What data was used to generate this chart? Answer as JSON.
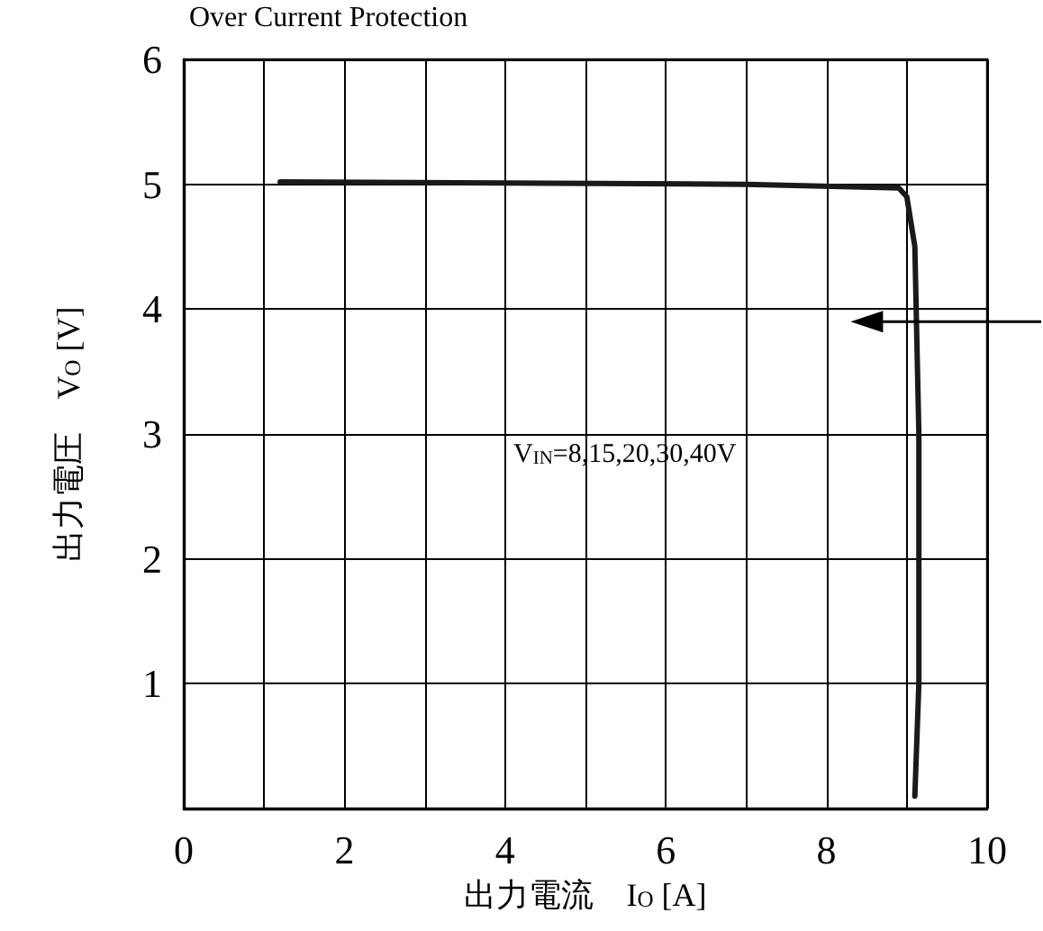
{
  "chart_data": {
    "type": "line",
    "title": "Over Current Protection",
    "xlabel": "出力電流　I$_{O}$ [A]",
    "ylabel": "出力電圧　V$_{O}$ [V]",
    "annotations": [
      "V$_{IN}$=8,15,20,30,40V"
    ],
    "series": [
      {
        "color": "#1a1a1a",
        "x": [
          1.2,
          4,
          7,
          8.9,
          9.0,
          9.1,
          9.15,
          9.15,
          9.1
        ],
        "values": [
          5.02,
          5.01,
          5.0,
          4.97,
          4.9,
          4.5,
          3,
          1,
          0.1
        ]
      }
    ],
    "xlim": [
      0,
      10
    ],
    "ylim": [
      0,
      6
    ],
    "xticks": [
      0,
      {
        "value": 1,
        "label": null
      },
      2,
      {
        "value": 3,
        "label": null
      },
      4,
      {
        "value": 5,
        "label": null
      },
      6,
      {
        "value": 7,
        "label": null
      },
      8,
      {
        "value": 9,
        "label": null
      },
      10
    ],
    "yticks": [
      1,
      2,
      3,
      4,
      5,
      6
    ],
    "grid": true,
    "marker": "none",
    "line_style": "solid"
  }
}
